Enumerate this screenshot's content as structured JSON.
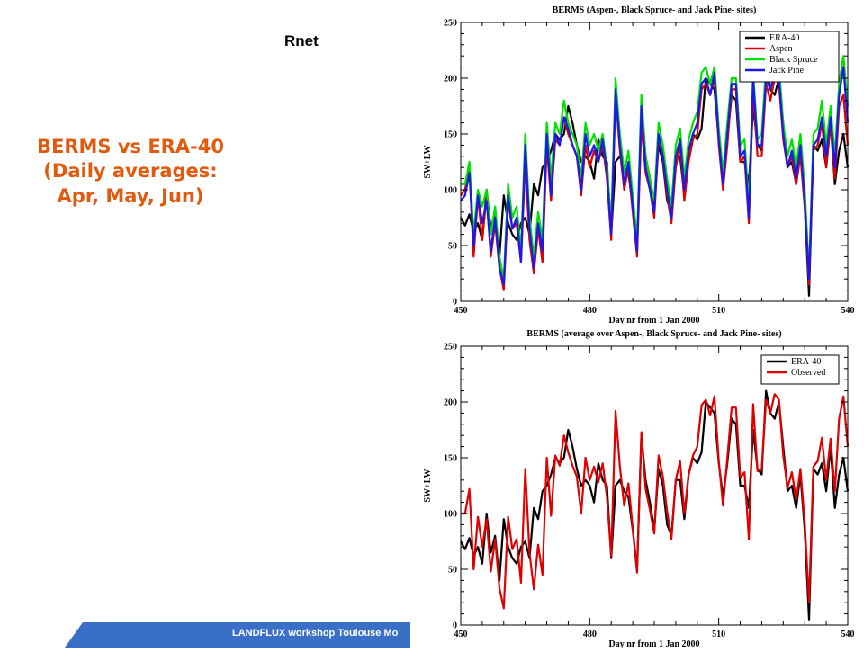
{
  "slide": {
    "rnet_label": "Rnet",
    "title_lines": [
      "BERMS vs ERA-40",
      "(Daily averages:",
      "Apr, May, Jun)"
    ],
    "footer_text": "LANDFLUX workshop Toulouse Mo"
  },
  "colors": {
    "title": "#e05a10",
    "footer_bar": "#3a6fc8",
    "era40": "#000000",
    "aspen": "#e00000",
    "black_spruce": "#00e000",
    "jack_pine": "#1a1aee",
    "observed": "#e00000"
  },
  "chart_data": [
    {
      "type": "line",
      "title": "BERMS (Aspen-, Black Spruce- and Jack Pine- sites)",
      "xlabel": "Day nr from 1 Jan 2000",
      "ylabel": "SW+LW",
      "xlim": [
        450,
        540
      ],
      "ylim": [
        0,
        250
      ],
      "xticks": [
        450,
        480,
        510,
        540
      ],
      "yticks": [
        0,
        50,
        100,
        150,
        200,
        250
      ],
      "legend_position": "top-right",
      "x_start": 450,
      "series": [
        {
          "name": "ERA-40",
          "color": "#000000",
          "values": [
            75,
            68,
            78,
            62,
            70,
            55,
            100,
            65,
            80,
            40,
            95,
            70,
            60,
            55,
            70,
            75,
            60,
            105,
            95,
            120,
            125,
            135,
            150,
            145,
            150,
            175,
            160,
            140,
            125,
            130,
            125,
            110,
            145,
            130,
            125,
            60,
            125,
            130,
            120,
            115,
            85,
            50,
            170,
            130,
            110,
            85,
            140,
            125,
            90,
            80,
            130,
            130,
            95,
            135,
            150,
            145,
            155,
            200,
            195,
            190,
            145,
            115,
            145,
            185,
            180,
            125,
            125,
            105,
            175,
            140,
            135,
            210,
            190,
            185,
            200,
            160,
            120,
            125,
            105,
            135,
            85,
            5,
            140,
            135,
            145,
            120,
            160,
            105,
            135,
            150,
            120
          ]
        },
        {
          "name": "Aspen",
          "color": "#e00000",
          "values": [
            95,
            100,
            120,
            40,
            95,
            55,
            95,
            40,
            70,
            30,
            10,
            90,
            65,
            70,
            35,
            125,
            55,
            25,
            65,
            35,
            140,
            90,
            145,
            140,
            165,
            150,
            140,
            130,
            95,
            140,
            120,
            135,
            125,
            140,
            110,
            55,
            185,
            135,
            100,
            120,
            80,
            40,
            160,
            115,
            100,
            75,
            145,
            130,
            95,
            70,
            120,
            140,
            90,
            125,
            145,
            150,
            190,
            195,
            185,
            200,
            140,
            100,
            140,
            190,
            190,
            125,
            130,
            70,
            190,
            130,
            130,
            195,
            180,
            200,
            195,
            145,
            120,
            130,
            105,
            130,
            85,
            15,
            135,
            140,
            160,
            120,
            160,
            110,
            175,
            185,
            140
          ]
        },
        {
          "name": "Black Spruce",
          "color": "#00e000",
          "values": [
            105,
            105,
            125,
            60,
            100,
            85,
            100,
            60,
            85,
            40,
            20,
            105,
            75,
            85,
            45,
            150,
            75,
            40,
            80,
            55,
            160,
            110,
            160,
            150,
            180,
            160,
            150,
            140,
            110,
            160,
            140,
            150,
            135,
            150,
            120,
            70,
            200,
            150,
            115,
            135,
            95,
            55,
            185,
            130,
            110,
            90,
            160,
            140,
            110,
            85,
            140,
            155,
            110,
            145,
            160,
            170,
            205,
            210,
            195,
            210,
            155,
            115,
            160,
            200,
            200,
            140,
            145,
            85,
            205,
            145,
            150,
            210,
            200,
            215,
            210,
            160,
            130,
            145,
            120,
            150,
            100,
            25,
            150,
            155,
            180,
            140,
            175,
            130,
            195,
            220,
            175
          ]
        },
        {
          "name": "Jack Pine",
          "color": "#1a1aee",
          "values": [
            90,
            95,
            115,
            50,
            95,
            70,
            90,
            45,
            75,
            30,
            15,
            95,
            65,
            75,
            35,
            140,
            65,
            30,
            70,
            45,
            150,
            95,
            150,
            140,
            165,
            155,
            140,
            130,
            100,
            150,
            130,
            140,
            125,
            145,
            115,
            60,
            190,
            140,
            105,
            125,
            85,
            45,
            175,
            120,
            100,
            80,
            150,
            130,
            100,
            75,
            130,
            145,
            100,
            135,
            150,
            160,
            195,
            200,
            185,
            205,
            145,
            105,
            150,
            195,
            195,
            130,
            135,
            75,
            200,
            140,
            140,
            200,
            190,
            205,
            200,
            150,
            120,
            135,
            110,
            140,
            90,
            20,
            140,
            145,
            165,
            130,
            165,
            120,
            185,
            210,
            160
          ]
        }
      ]
    },
    {
      "type": "line",
      "title": "BERMS (average over Aspen-, Black Spruce- and Jack Pine- sites)",
      "xlabel": "Day nr from 1 Jan 2000",
      "ylabel": "SW+LW",
      "xlim": [
        450,
        540
      ],
      "ylim": [
        0,
        250
      ],
      "xticks": [
        450,
        480,
        510,
        540
      ],
      "yticks": [
        0,
        50,
        100,
        150,
        200,
        250
      ],
      "legend_position": "top-right",
      "x_start": 450,
      "series": [
        {
          "name": "ERA-40",
          "color": "#000000",
          "values": [
            75,
            68,
            78,
            62,
            70,
            55,
            100,
            65,
            80,
            40,
            95,
            70,
            60,
            55,
            70,
            75,
            60,
            105,
            95,
            120,
            125,
            135,
            150,
            145,
            150,
            175,
            160,
            140,
            125,
            130,
            125,
            110,
            145,
            130,
            125,
            60,
            125,
            130,
            120,
            115,
            85,
            50,
            170,
            130,
            110,
            85,
            140,
            125,
            90,
            80,
            130,
            130,
            95,
            135,
            150,
            145,
            155,
            200,
            195,
            190,
            145,
            115,
            145,
            185,
            180,
            125,
            125,
            105,
            175,
            140,
            135,
            210,
            190,
            185,
            200,
            160,
            120,
            125,
            105,
            135,
            85,
            5,
            140,
            135,
            145,
            120,
            160,
            105,
            135,
            150,
            120
          ]
        },
        {
          "name": "Observed",
          "color": "#e00000",
          "values": [
            100,
            100,
            122,
            50,
            97,
            70,
            95,
            48,
            77,
            33,
            15,
            97,
            68,
            77,
            38,
            140,
            65,
            32,
            72,
            45,
            150,
            98,
            152,
            143,
            170,
            155,
            143,
            133,
            100,
            150,
            130,
            142,
            128,
            145,
            115,
            62,
            192,
            142,
            107,
            127,
            87,
            47,
            173,
            122,
            103,
            82,
            152,
            133,
            102,
            77,
            130,
            147,
            100,
            135,
            152,
            160,
            197,
            202,
            188,
            205,
            147,
            107,
            150,
            195,
            195,
            132,
            137,
            77,
            198,
            138,
            140,
            202,
            190,
            207,
            202,
            152,
            123,
            137,
            112,
            140,
            92,
            20,
            142,
            147,
            168,
            130,
            167,
            120,
            185,
            205,
            160
          ]
        }
      ]
    }
  ]
}
